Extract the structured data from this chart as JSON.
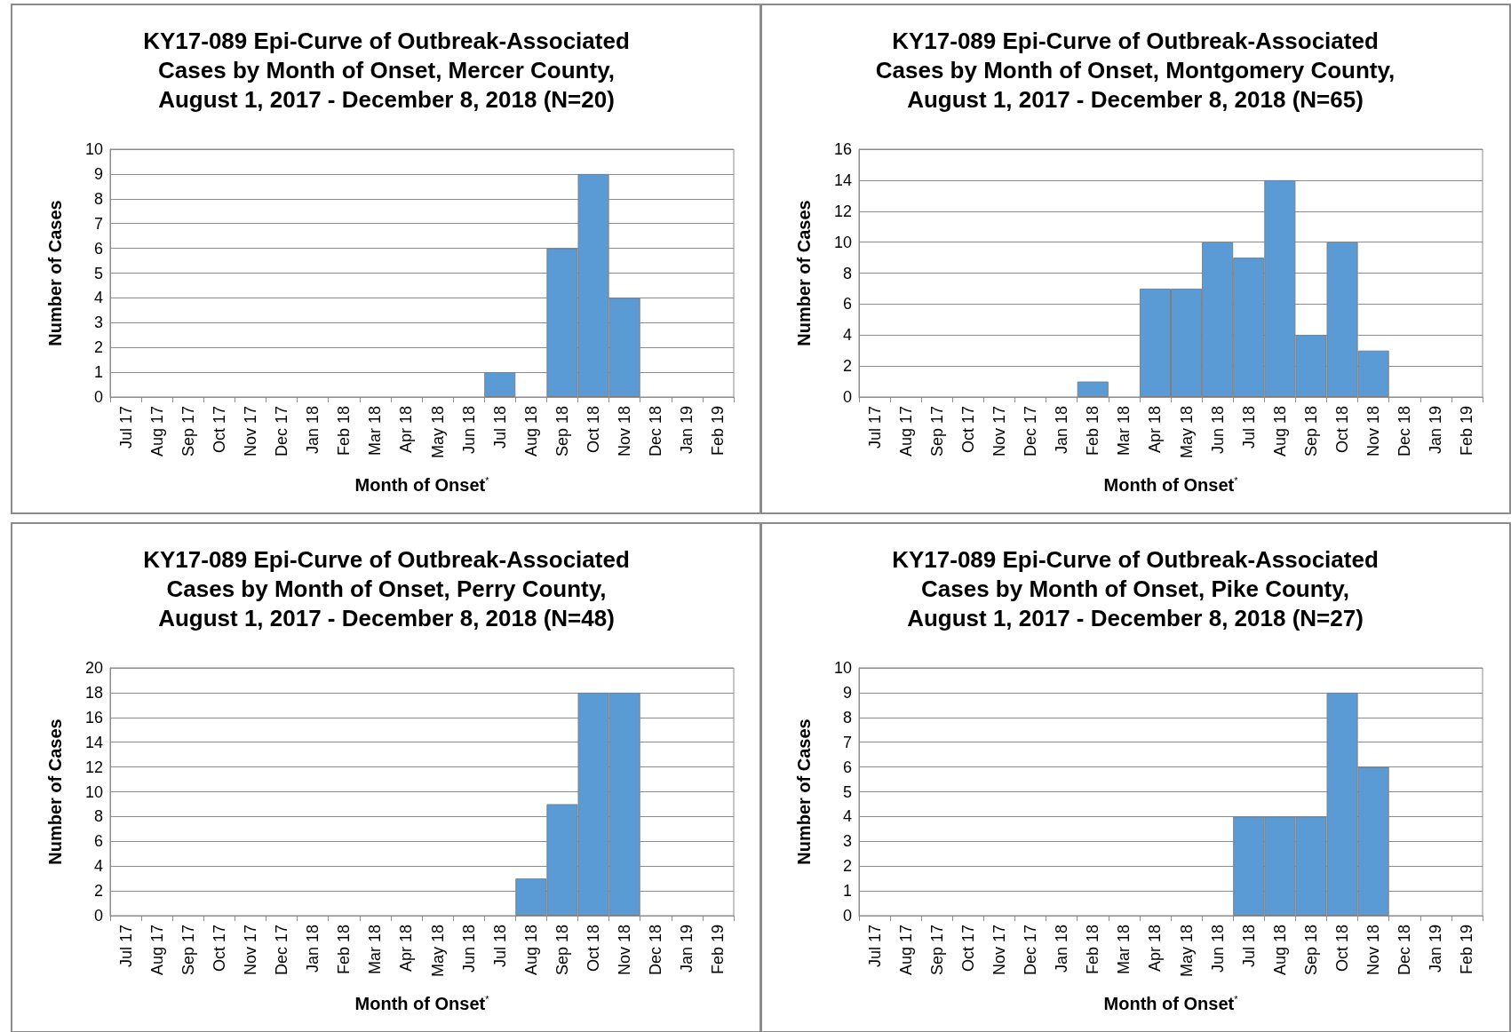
{
  "chart_data": [
    {
      "type": "bar",
      "title": "KY17-089 Epi-Curve of Outbreak-Associated\nCases by Month of Onset, Mercer County,\nAugust 1, 2017 - December 8, 2018 (N=20)",
      "xlabel": "Month of Onset$^{*}$",
      "ylabel": "Number of Cases",
      "categories": [
        "Jul 17",
        "Aug 17",
        "Sep 17",
        "Oct 17",
        "Nov 17",
        "Dec 17",
        "Jan 18",
        "Feb 18",
        "Mar 18",
        "Apr 18",
        "May 18",
        "Jun 18",
        "Jul 18",
        "Aug 18",
        "Sep 18",
        "Oct 18",
        "Nov 18",
        "Dec 18",
        "Jan 19",
        "Feb 19"
      ],
      "values": [
        0,
        0,
        0,
        0,
        0,
        0,
        0,
        0,
        0,
        0,
        0,
        0,
        1,
        0,
        6,
        9,
        4,
        0,
        0,
        0
      ],
      "color": "#5b9bd5",
      "ylim": [
        0,
        10
      ],
      "yticks": [
        0,
        1,
        2,
        3,
        4,
        5,
        6,
        7,
        8,
        9,
        10
      ],
      "grid": "y"
    },
    {
      "type": "bar",
      "title": "KY17-089 Epi-Curve of Outbreak-Associated\nCases by Month of Onset, Montgomery County,\nAugust 1, 2017 - December 8, 2018 (N=65)",
      "xlabel": "Month of Onset$^{*}$",
      "ylabel": "Number of Cases",
      "categories": [
        "Jul 17",
        "Aug 17",
        "Sep 17",
        "Oct 17",
        "Nov 17",
        "Dec 17",
        "Jan 18",
        "Feb 18",
        "Mar 18",
        "Apr 18",
        "May 18",
        "Jun 18",
        "Jul 18",
        "Aug 18",
        "Sep 18",
        "Oct 18",
        "Nov 18",
        "Dec 18",
        "Jan 19",
        "Feb 19"
      ],
      "values": [
        0,
        0,
        0,
        0,
        0,
        0,
        0,
        1,
        0,
        7,
        7,
        10,
        9,
        14,
        4,
        10,
        3,
        0,
        0,
        0
      ],
      "color": "#5b9bd5",
      "ylim": [
        0,
        16
      ],
      "yticks": [
        0,
        2,
        4,
        6,
        8,
        10,
        12,
        14,
        16
      ],
      "grid": "y"
    },
    {
      "type": "bar",
      "title": "KY17-089 Epi-Curve of Outbreak-Associated\nCases by Month of Onset, Perry County,\nAugust 1, 2017 - December 8, 2018 (N=48)",
      "xlabel": "Month of Onset$^{*}$",
      "ylabel": "Number of Cases",
      "categories": [
        "Jul 17",
        "Aug 17",
        "Sep 17",
        "Oct 17",
        "Nov 17",
        "Dec 17",
        "Jan 18",
        "Feb 18",
        "Mar 18",
        "Apr 18",
        "May 18",
        "Jun 18",
        "Jul 18",
        "Aug 18",
        "Sep 18",
        "Oct 18",
        "Nov 18",
        "Dec 18",
        "Jan 19",
        "Feb 19"
      ],
      "values": [
        0,
        0,
        0,
        0,
        0,
        0,
        0,
        0,
        0,
        0,
        0,
        0,
        0,
        3,
        9,
        18,
        18,
        0,
        0,
        0
      ],
      "color": "#5b9bd5",
      "ylim": [
        0,
        20
      ],
      "yticks": [
        0,
        2,
        4,
        6,
        8,
        10,
        12,
        14,
        16,
        18,
        20
      ],
      "grid": "y"
    },
    {
      "type": "bar",
      "title": "KY17-089 Epi-Curve of Outbreak-Associated\nCases by Month of Onset, Pike County,\nAugust 1, 2017 - December 8, 2018 (N=27)",
      "xlabel": "Month of Onset$^{*}$",
      "ylabel": "Number of Cases",
      "categories": [
        "Jul 17",
        "Aug 17",
        "Sep 17",
        "Oct 17",
        "Nov 17",
        "Dec 17",
        "Jan 18",
        "Feb 18",
        "Mar 18",
        "Apr 18",
        "May 18",
        "Jun 18",
        "Jul 18",
        "Aug 18",
        "Sep 18",
        "Oct 18",
        "Nov 18",
        "Dec 18",
        "Jan 19",
        "Feb 19"
      ],
      "values": [
        0,
        0,
        0,
        0,
        0,
        0,
        0,
        0,
        0,
        0,
        0,
        0,
        4,
        4,
        4,
        9,
        6,
        0,
        0,
        0
      ],
      "color": "#5b9bd5",
      "ylim": [
        0,
        10
      ],
      "yticks": [
        0,
        1,
        2,
        3,
        4,
        5,
        6,
        7,
        8,
        9,
        10
      ],
      "grid": "y"
    }
  ]
}
